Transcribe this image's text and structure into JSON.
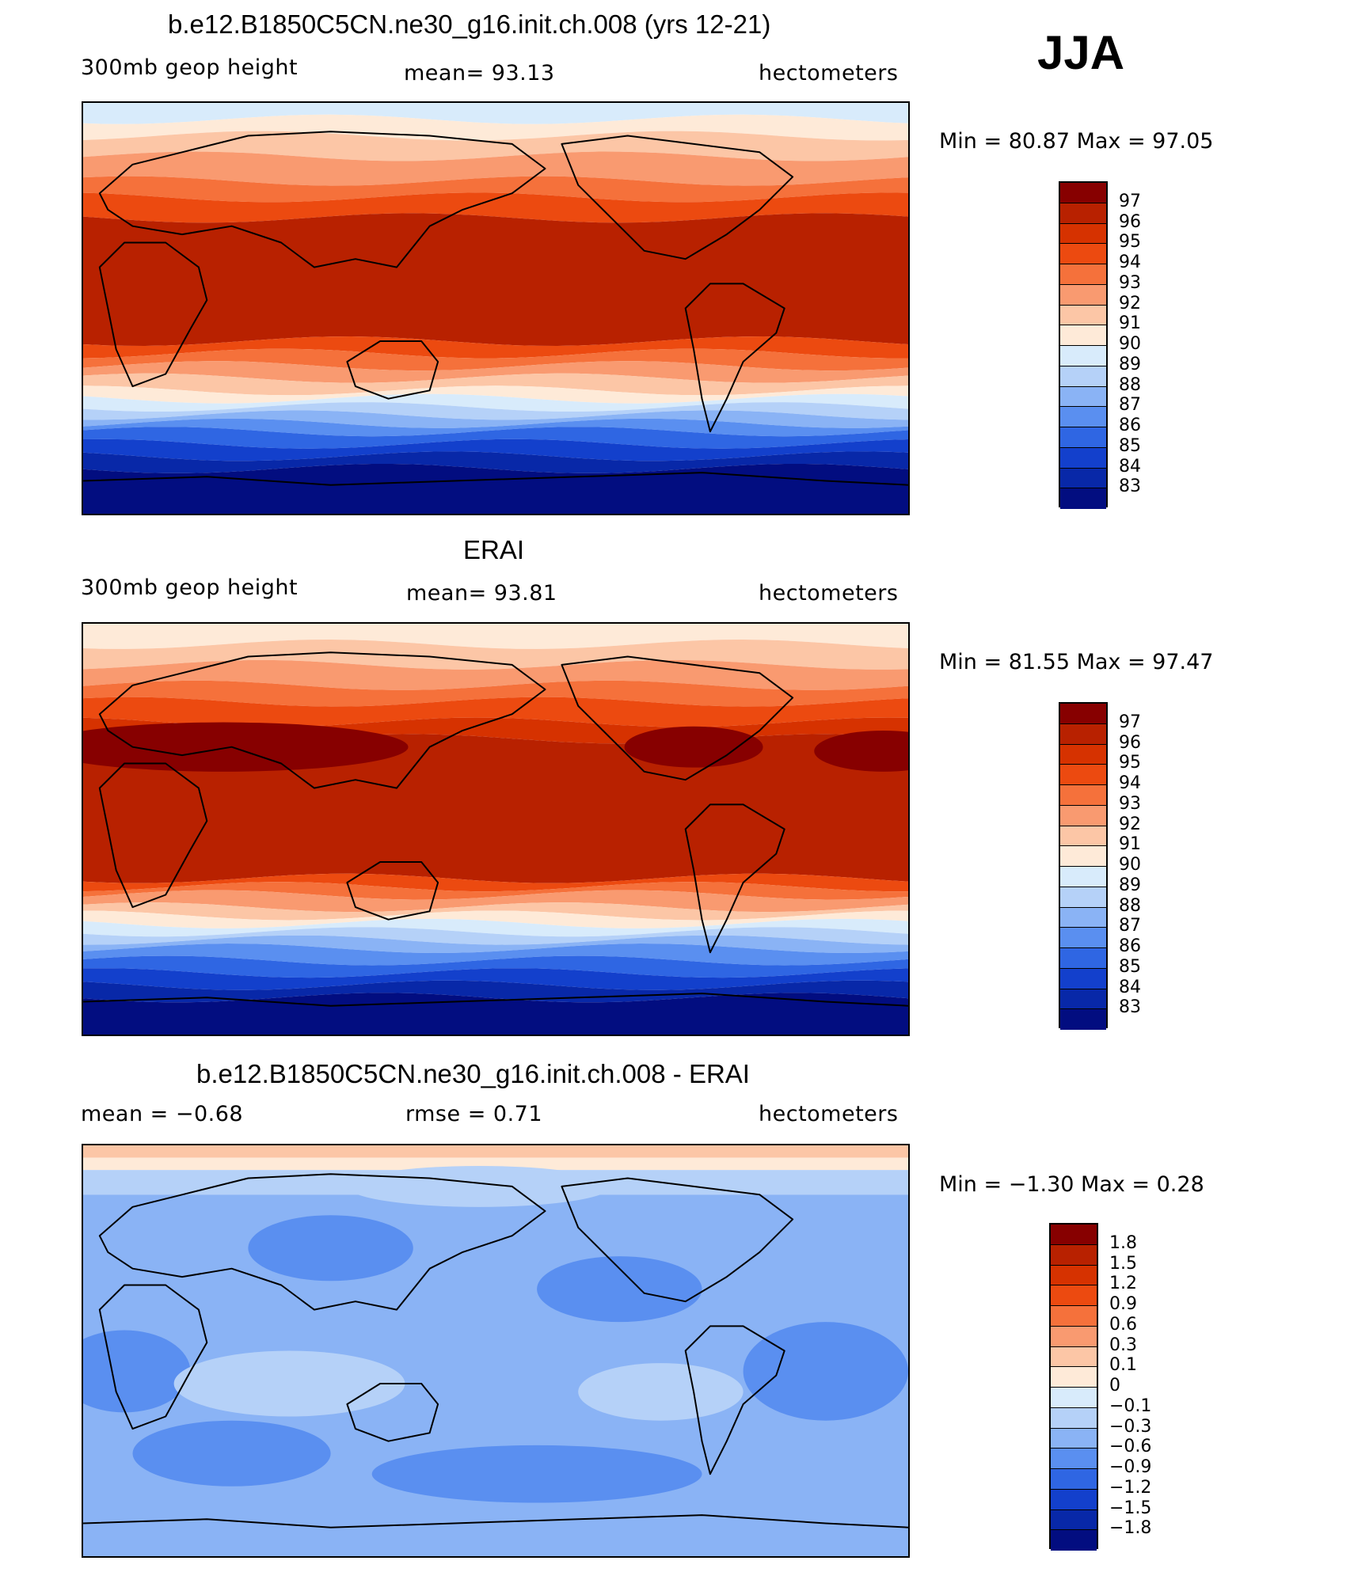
{
  "season": "JJA",
  "panels": [
    {
      "title": "b.e12.B1850C5CN.ne30_g16.init.ch.008 (yrs 12-21)",
      "left_label": "300mb  geop  height",
      "center_label": "mean=   93.13",
      "right_label": "hectometers",
      "min_max": "Min  =    80.87  Max  =    97.05",
      "variant": "model"
    },
    {
      "title": "ERAI",
      "left_label": "300mb  geop  height",
      "center_label": "mean=   93.81",
      "right_label": "hectometers",
      "min_max": "Min  =    81.55  Max  =    97.47",
      "variant": "obs"
    },
    {
      "title": "b.e12.B1850C5CN.ne30_g16.init.ch.008 - ERAI",
      "left_label": "mean  =    −0.68",
      "center_label": "rmse  =     0.71",
      "right_label": "hectometers",
      "min_max": "Min  =    −1.30  Max  =     0.28",
      "variant": "diff"
    }
  ],
  "colorbars": [
    {
      "labels": [
        "97",
        "96",
        "95",
        "94",
        "93",
        "92",
        "91",
        "90",
        "89",
        "88",
        "87",
        "86",
        "85",
        "84",
        "83"
      ],
      "colors": [
        "#870000",
        "#b82100",
        "#d63200",
        "#ec4a10",
        "#f5713b",
        "#f99a70",
        "#fcc6a6",
        "#feead8",
        "#d8ebfb",
        "#b5d1f8",
        "#8ab3f5",
        "#5a8ff0",
        "#2f66e3",
        "#1340cc",
        "#0828a8",
        "#020d80"
      ]
    },
    {
      "labels": [
        "97",
        "96",
        "95",
        "94",
        "93",
        "92",
        "91",
        "90",
        "89",
        "88",
        "87",
        "86",
        "85",
        "84",
        "83"
      ],
      "colors": [
        "#870000",
        "#b82100",
        "#d63200",
        "#ec4a10",
        "#f5713b",
        "#f99a70",
        "#fcc6a6",
        "#feead8",
        "#d8ebfb",
        "#b5d1f8",
        "#8ab3f5",
        "#5a8ff0",
        "#2f66e3",
        "#1340cc",
        "#0828a8",
        "#020d80"
      ]
    },
    {
      "labels": [
        "1.8",
        "1.5",
        "1.2",
        "0.9",
        "0.6",
        "0.3",
        "0.1",
        "0",
        "−0.1",
        "−0.3",
        "−0.6",
        "−0.9",
        "−1.2",
        "−1.5",
        "−1.8"
      ],
      "colors": [
        "#870000",
        "#b82100",
        "#d63200",
        "#ec4a10",
        "#f5713b",
        "#f99a70",
        "#fcc6a6",
        "#feead8",
        "#d8ebfb",
        "#b5d1f8",
        "#8ab3f5",
        "#5a8ff0",
        "#2f66e3",
        "#1340cc",
        "#0828a8",
        "#020d80"
      ]
    }
  ],
  "chart_data": {
    "type": "heatmap",
    "season": "JJA",
    "variable": "300mb geop height",
    "units": "hectometers",
    "fields": [
      {
        "name": "b.e12.B1850C5CN.ne30_g16.init.ch.008 (yrs 12-21)",
        "mean": 93.13,
        "min": 80.87,
        "max": 97.05,
        "levels": [
          83,
          84,
          85,
          86,
          87,
          88,
          89,
          90,
          91,
          92,
          93,
          94,
          95,
          96,
          97
        ]
      },
      {
        "name": "ERAI",
        "mean": 93.81,
        "min": 81.55,
        "max": 97.47,
        "levels": [
          83,
          84,
          85,
          86,
          87,
          88,
          89,
          90,
          91,
          92,
          93,
          94,
          95,
          96,
          97
        ]
      },
      {
        "name": "b.e12.B1850C5CN.ne30_g16.init.ch.008 - ERAI",
        "mean": -0.68,
        "rmse": 0.71,
        "min": -1.3,
        "max": 0.28,
        "levels": [
          -1.8,
          -1.5,
          -1.2,
          -0.9,
          -0.6,
          -0.3,
          -0.1,
          0,
          0.1,
          0.3,
          0.6,
          0.9,
          1.2,
          1.5,
          1.8
        ]
      }
    ]
  }
}
